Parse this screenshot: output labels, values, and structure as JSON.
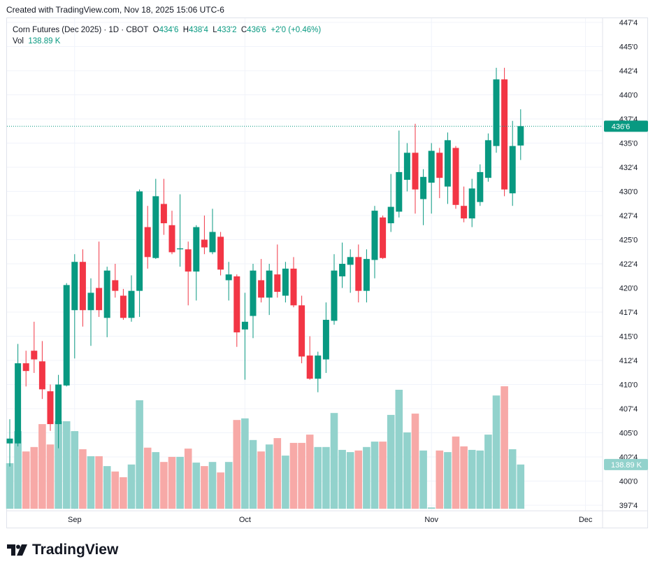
{
  "header": {
    "created": "Created with TradingView.com, Nov 18, 2025 15:06 UTC-6"
  },
  "legend": {
    "symbol": "Corn Futures (Dec 2025) · 1D · CBOT",
    "o_label": "O",
    "o": "434'6",
    "h_label": "H",
    "h": "438'4",
    "l_label": "L",
    "l": "433'2",
    "c_label": "C",
    "c": "436'6",
    "change": "+2'0 (+0.46%)",
    "vol_label": "Vol",
    "vol": "138.89 K"
  },
  "logo": {
    "text": "TradingView"
  },
  "colors": {
    "up": "#089981",
    "down": "#f23645",
    "up_vol": "#92d2cc",
    "down_vol": "#f7a9a7",
    "grid": "#f0f3fa"
  },
  "chart_data": {
    "type": "candlestick",
    "title": "Corn Futures (Dec 2025) · 1D · CBOT",
    "ylim": [
      397.5,
      447.5
    ],
    "y_ticks": [
      "447'4",
      "445'0",
      "442'4",
      "440'0",
      "437'4",
      "435'0",
      "432'4",
      "430'0",
      "427'4",
      "425'0",
      "422'4",
      "420'0",
      "417'4",
      "415'0",
      "412'4",
      "410'0",
      "407'4",
      "405'0",
      "402'4",
      "400'0",
      "397'4"
    ],
    "y_tick_values": [
      447.5,
      445,
      442.5,
      440,
      437.5,
      435,
      432.5,
      430,
      427.5,
      425,
      422.5,
      420,
      417.5,
      415,
      412.5,
      410,
      407.5,
      405,
      402.5,
      400,
      397.5
    ],
    "x_labels": [
      {
        "label": "Sep",
        "index": 8
      },
      {
        "label": "Oct",
        "index": 29
      },
      {
        "label": "Nov",
        "index": 52
      },
      {
        "label": "Dec",
        "index": 71
      }
    ],
    "last_price_label": "436'6",
    "last_price": 436.75,
    "last_volume_label": "138.89 K",
    "volume_unit": "K",
    "ohlcv": [
      [
        403.9,
        406.4,
        401.5,
        404.4,
        143
      ],
      [
        403.9,
        414.2,
        403.6,
        412.2,
        244
      ],
      [
        412.2,
        413.5,
        409.8,
        411.4,
        180
      ],
      [
        413.5,
        416.5,
        411.2,
        412.6,
        194
      ],
      [
        412.4,
        414.5,
        408.5,
        409.5,
        266
      ],
      [
        409.3,
        410.0,
        405.2,
        405.9,
        202
      ],
      [
        405.9,
        411.0,
        403.4,
        410.0,
        275
      ],
      [
        409.9,
        420.5,
        409.8,
        420.3,
        275
      ],
      [
        417.7,
        423.5,
        412.7,
        422.7,
        244
      ],
      [
        422.7,
        424.0,
        416.0,
        417.7,
        187
      ],
      [
        417.7,
        421.0,
        414.0,
        419.5,
        165
      ],
      [
        420.0,
        424.8,
        417.0,
        417.7,
        165
      ],
      [
        416.9,
        422.2,
        414.9,
        421.8,
        134
      ],
      [
        420.8,
        422.5,
        419.0,
        419.7,
        117
      ],
      [
        419.2,
        419.9,
        416.7,
        416.9,
        99
      ],
      [
        416.9,
        421.3,
        416.5,
        419.7,
        139
      ],
      [
        419.7,
        430.2,
        417.0,
        430.0,
        341
      ],
      [
        426.3,
        428.5,
        422.0,
        423.2,
        192
      ],
      [
        423.1,
        431.3,
        423.0,
        429.5,
        178
      ],
      [
        428.7,
        431.3,
        425.5,
        426.7,
        147
      ],
      [
        426.5,
        428.0,
        423.5,
        423.7,
        163
      ],
      [
        424.0,
        429.7,
        422.2,
        424.1,
        163
      ],
      [
        424.0,
        424.8,
        418.2,
        421.7,
        189
      ],
      [
        421.7,
        426.5,
        418.7,
        426.3,
        145
      ],
      [
        425.0,
        427.5,
        423.5,
        424.2,
        134
      ],
      [
        423.7,
        428.2,
        423.5,
        425.8,
        147
      ],
      [
        425.3,
        425.8,
        421.3,
        421.9,
        114
      ],
      [
        420.8,
        422.7,
        418.7,
        421.4,
        147
      ],
      [
        421.2,
        421.4,
        413.9,
        415.4,
        279
      ],
      [
        415.7,
        419.5,
        410.5,
        416.5,
        284
      ],
      [
        417.1,
        422.5,
        414.8,
        421.8,
        216
      ],
      [
        420.8,
        423.0,
        418.5,
        419.0,
        180
      ],
      [
        419.0,
        422.5,
        417.2,
        421.8,
        202
      ],
      [
        421.4,
        424.5,
        419.0,
        419.6,
        222
      ],
      [
        419.2,
        422.7,
        418.5,
        422.0,
        167
      ],
      [
        422.0,
        423.2,
        418.0,
        418.2,
        207
      ],
      [
        418.2,
        419.2,
        412.2,
        412.9,
        207
      ],
      [
        413.0,
        415.0,
        410.5,
        410.6,
        233
      ],
      [
        410.6,
        413.4,
        409.2,
        413.0,
        194
      ],
      [
        412.6,
        418.5,
        411.2,
        416.7,
        194
      ],
      [
        416.6,
        423.5,
        416.2,
        421.8,
        301
      ],
      [
        421.2,
        424.7,
        420.0,
        422.5,
        185
      ],
      [
        422.4,
        424.0,
        419.5,
        423.2,
        178
      ],
      [
        423.2,
        424.5,
        418.5,
        419.7,
        183
      ],
      [
        419.7,
        424.0,
        418.5,
        423.0,
        194
      ],
      [
        422.9,
        428.5,
        421.0,
        428.0,
        211
      ],
      [
        427.3,
        427.5,
        423.0,
        423.1,
        211
      ],
      [
        426.7,
        431.8,
        425.8,
        428.4,
        295
      ],
      [
        427.9,
        436.3,
        427.3,
        432.0,
        374
      ],
      [
        431.2,
        435.0,
        430.0,
        434.0,
        240
      ],
      [
        434.0,
        437.0,
        427.7,
        430.2,
        299
      ],
      [
        429.2,
        432.3,
        426.5,
        431.5,
        183
      ],
      [
        430.9,
        435.0,
        427.7,
        434.2,
        4
      ],
      [
        434.0,
        434.5,
        429.3,
        431.4,
        183
      ],
      [
        430.5,
        436.1,
        428.7,
        435.3,
        178
      ],
      [
        434.5,
        434.7,
        428.2,
        428.6,
        227
      ],
      [
        428.5,
        430.5,
        426.8,
        427.2,
        196
      ],
      [
        427.2,
        431.3,
        426.3,
        430.3,
        185
      ],
      [
        428.9,
        432.8,
        428.5,
        432.0,
        183
      ],
      [
        431.4,
        436.0,
        431.0,
        435.3,
        233
      ],
      [
        434.7,
        442.8,
        434.0,
        441.6,
        356
      ],
      [
        441.6,
        442.8,
        429.5,
        430.2,
        385
      ],
      [
        429.8,
        437.3,
        428.5,
        434.7,
        187
      ],
      [
        434.75,
        438.5,
        433.25,
        436.75,
        139
      ]
    ]
  }
}
